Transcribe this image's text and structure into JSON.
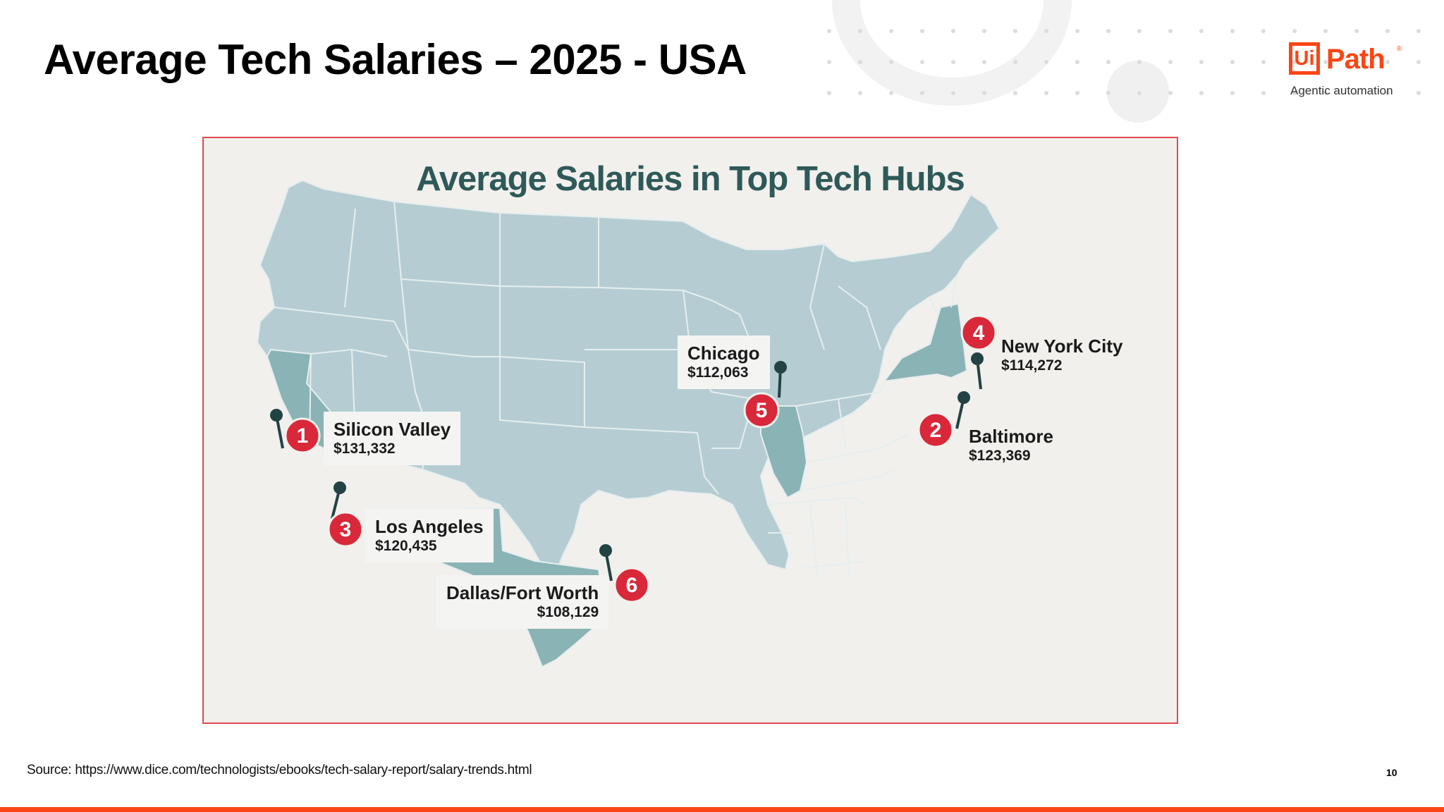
{
  "slide": {
    "title": "Average Tech Salaries – 2025 - USA",
    "source": "Source: https://www.dice.com/technologists/ebooks/tech-salary-report/salary-trends.html",
    "page_number": "10"
  },
  "logo": {
    "box_text": "Ui",
    "brand_text": "Path",
    "registered_mark": "®",
    "tagline": "Agentic automation",
    "brand_color": "#fa4616"
  },
  "map": {
    "title": "Average Salaries in Top Tech Hubs",
    "colors": {
      "land": "#b5cdd2",
      "highlight": "#8ab3b5",
      "border": "#e6eeef",
      "pin": "#234244",
      "badge": "#d8283a",
      "title": "#2f5959",
      "frame": "#e2484f"
    },
    "hubs": [
      {
        "rank": "1",
        "city": "Silicon Valley",
        "salary": "$131,332"
      },
      {
        "rank": "2",
        "city": "Baltimore",
        "salary": "$123,369"
      },
      {
        "rank": "3",
        "city": "Los Angeles",
        "salary": "$120,435"
      },
      {
        "rank": "4",
        "city": "New York City",
        "salary": "$114,272"
      },
      {
        "rank": "5",
        "city": "Chicago",
        "salary": "$112,063"
      },
      {
        "rank": "6",
        "city": "Dallas/Fort Worth",
        "salary": "$108,129"
      }
    ]
  }
}
